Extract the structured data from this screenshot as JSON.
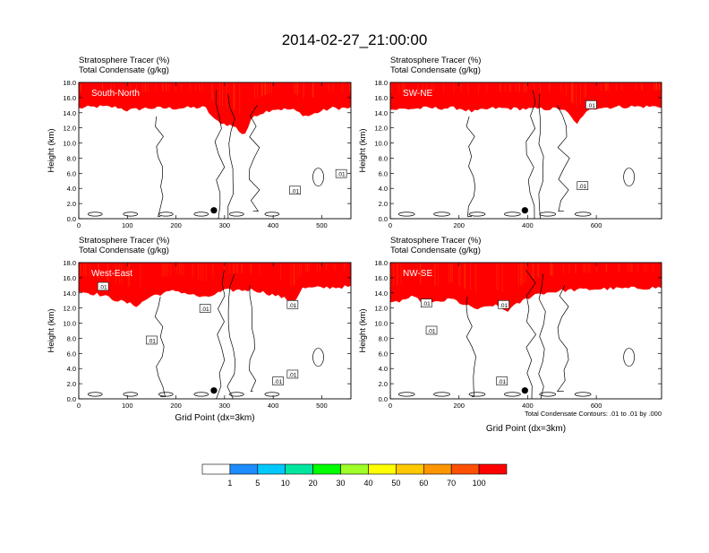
{
  "page": {
    "title": "2014-02-27_21:00:00"
  },
  "chart_data": [
    {
      "type": "heatmap",
      "panel": "South-North",
      "title_left_1": "Stratosphere Tracer   (%)",
      "title_left_2": "Total Condensate   (g/kg)",
      "ylabel": "Height (km)",
      "xlabel": "",
      "xlim": [
        0,
        560
      ],
      "ylim": [
        0,
        18
      ],
      "xticks": [
        0,
        100,
        200,
        300,
        400,
        500
      ],
      "yticks": [
        0.0,
        2.0,
        4.0,
        6.0,
        8.0,
        10.0,
        12.0,
        14.0,
        16.0,
        18.0
      ],
      "tracer_bottom_km": [
        [
          0,
          14.6
        ],
        [
          40,
          14.8
        ],
        [
          80,
          14.7
        ],
        [
          100,
          14.3
        ],
        [
          140,
          14.6
        ],
        [
          200,
          14.6
        ],
        [
          260,
          14.7
        ],
        [
          280,
          13.0
        ],
        [
          300,
          12.5
        ],
        [
          320,
          12.2
        ],
        [
          340,
          11.0
        ],
        [
          360,
          13.6
        ],
        [
          400,
          14.5
        ],
        [
          440,
          14.4
        ],
        [
          470,
          13.5
        ],
        [
          490,
          14.0
        ],
        [
          520,
          14.6
        ],
        [
          560,
          14.6
        ]
      ],
      "contour_labels": [
        {
          "x": 445,
          "y": 3.7,
          "text": ".01"
        },
        {
          "x": 540,
          "y": 5.9,
          "text": ".01"
        }
      ],
      "marker": {
        "x": 278,
        "y": 1.1
      }
    },
    {
      "type": "heatmap",
      "panel": "SW-NE",
      "title_left_1": "Stratosphere Tracer   (%)",
      "title_left_2": "Total Condensate   (g/kg)",
      "ylabel": "Height (km)",
      "xlabel": "",
      "xlim": [
        0,
        790
      ],
      "ylim": [
        0,
        18
      ],
      "xticks": [
        0,
        200,
        400,
        600
      ],
      "yticks": [
        0.0,
        2.0,
        4.0,
        6.0,
        8.0,
        10.0,
        12.0,
        14.0,
        16.0,
        18.0
      ],
      "tracer_bottom_km": [
        [
          0,
          14.4
        ],
        [
          100,
          14.6
        ],
        [
          200,
          14.6
        ],
        [
          240,
          14.1
        ],
        [
          300,
          14.6
        ],
        [
          400,
          14.5
        ],
        [
          500,
          14.5
        ],
        [
          520,
          13.8
        ],
        [
          540,
          12.5
        ],
        [
          560,
          13.3
        ],
        [
          580,
          14.6
        ],
        [
          680,
          14.8
        ],
        [
          790,
          14.8
        ]
      ],
      "contour_labels": [
        {
          "x": 585,
          "y": 15.0,
          "text": ".01"
        },
        {
          "x": 560,
          "y": 4.3,
          "text": ".01"
        }
      ],
      "marker": {
        "x": 392,
        "y": 1.1
      }
    },
    {
      "type": "heatmap",
      "panel": "West-East",
      "title_left_1": "Stratosphere Tracer   (%)",
      "title_left_2": "Total Condensate   (g/kg)",
      "ylabel": "Height (km)",
      "xlabel": "Grid Point (dx=3km)",
      "xlim": [
        0,
        560
      ],
      "ylim": [
        0,
        18
      ],
      "xticks": [
        0,
        100,
        200,
        300,
        400,
        500
      ],
      "yticks": [
        0.0,
        2.0,
        4.0,
        6.0,
        8.0,
        10.0,
        12.0,
        14.0,
        16.0,
        18.0
      ],
      "tracer_bottom_km": [
        [
          0,
          14.2
        ],
        [
          40,
          13.8
        ],
        [
          80,
          13.0
        ],
        [
          120,
          12.3
        ],
        [
          150,
          13.6
        ],
        [
          200,
          14.3
        ],
        [
          260,
          13.3
        ],
        [
          300,
          14.3
        ],
        [
          360,
          14.4
        ],
        [
          420,
          13.4
        ],
        [
          440,
          12.5
        ],
        [
          460,
          14.6
        ],
        [
          560,
          14.8
        ]
      ],
      "contour_labels": [
        {
          "x": 50,
          "y": 14.8,
          "text": ".01"
        },
        {
          "x": 260,
          "y": 11.9,
          "text": ".01"
        },
        {
          "x": 150,
          "y": 7.7,
          "text": ".01"
        },
        {
          "x": 440,
          "y": 12.4,
          "text": ".01"
        },
        {
          "x": 440,
          "y": 3.2,
          "text": ".01"
        },
        {
          "x": 410,
          "y": 2.3,
          "text": ".01"
        }
      ],
      "marker": {
        "x": 278,
        "y": 1.1
      }
    },
    {
      "type": "heatmap",
      "panel": "NW-SE",
      "title_left_1": "Stratosphere Tracer   (%)",
      "title_left_2": "Total Condensate   (g/kg)",
      "ylabel": "Height (km)",
      "xlabel": "Grid Point (dx=3km)",
      "xlim": [
        0,
        790
      ],
      "ylim": [
        0,
        18
      ],
      "xticks": [
        0,
        200,
        400,
        600
      ],
      "yticks": [
        0.0,
        2.0,
        4.0,
        6.0,
        8.0,
        10.0,
        12.0,
        14.0,
        16.0,
        18.0
      ],
      "tracer_bottom_km": [
        [
          0,
          12.5
        ],
        [
          60,
          13.4
        ],
        [
          120,
          12.6
        ],
        [
          180,
          13.2
        ],
        [
          220,
          12.3
        ],
        [
          260,
          11.8
        ],
        [
          300,
          12.4
        ],
        [
          340,
          11.6
        ],
        [
          380,
          12.8
        ],
        [
          420,
          13.8
        ],
        [
          500,
          14.3
        ],
        [
          600,
          14.5
        ],
        [
          700,
          14.6
        ],
        [
          790,
          14.7
        ]
      ],
      "contour_labels": [
        {
          "x": 105,
          "y": 12.6,
          "text": ".01"
        },
        {
          "x": 120,
          "y": 9.0,
          "text": ".01"
        },
        {
          "x": 325,
          "y": 2.3,
          "text": ".01"
        },
        {
          "x": 330,
          "y": 12.4,
          "text": ".01"
        }
      ],
      "marker": {
        "x": 392,
        "y": 1.1
      },
      "note": "Total Condensate Contours: .01 to .01 by .000"
    }
  ],
  "colorbar": {
    "levels": [
      "1",
      "5",
      "10",
      "20",
      "30",
      "40",
      "50",
      "60",
      "70",
      "100"
    ],
    "colors": [
      "#ffffff",
      "#1e8cff",
      "#00c8ff",
      "#00e6a0",
      "#00ff00",
      "#a0ff28",
      "#ffff00",
      "#ffc800",
      "#ff9600",
      "#ff5000",
      "#ff0000"
    ]
  }
}
